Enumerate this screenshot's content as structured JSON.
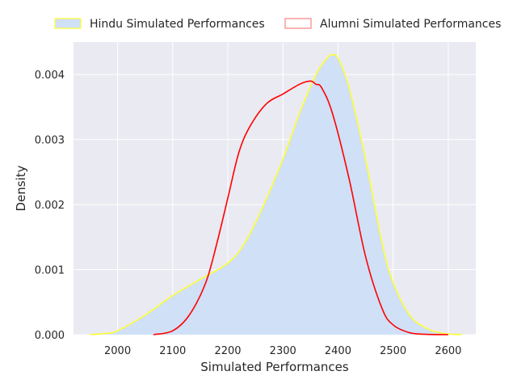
{
  "chart_data": {
    "type": "area",
    "xlabel": "Simulated Performances",
    "ylabel": "Density",
    "xlim": [
      1920,
      2650
    ],
    "ylim": [
      0,
      0.0045
    ],
    "xticks": [
      2000,
      2100,
      2200,
      2300,
      2400,
      2500,
      2600
    ],
    "yticks": [
      0.0,
      0.001,
      0.002,
      0.003,
      0.004
    ],
    "ytick_labels": [
      "0.000",
      "0.001",
      "0.002",
      "0.003",
      "0.004"
    ],
    "grid": true,
    "legend_position": "top",
    "series": [
      {
        "name": "Hindu Simulated Performances",
        "style": "filled",
        "line_color": "#ffff33",
        "fill_color": "#cfe0f7",
        "x": [
          1950,
          1980,
          2000,
          2050,
          2100,
          2150,
          2200,
          2230,
          2260,
          2300,
          2330,
          2360,
          2380,
          2390,
          2400,
          2420,
          2450,
          2480,
          2500,
          2530,
          2560,
          2590,
          2625
        ],
        "y": [
          0.0,
          2e-05,
          6e-05,
          0.0003,
          0.0006,
          0.00085,
          0.0011,
          0.0014,
          0.0019,
          0.0027,
          0.0034,
          0.004,
          0.00425,
          0.0043,
          0.00425,
          0.0038,
          0.0027,
          0.0014,
          0.0008,
          0.0003,
          0.0001,
          2e-05,
          0.0
        ]
      },
      {
        "name": "Alumni Simulated Performances",
        "style": "line",
        "line_color": "#ff0000",
        "x": [
          2065,
          2100,
          2130,
          2160,
          2180,
          2200,
          2220,
          2240,
          2270,
          2300,
          2330,
          2350,
          2360,
          2370,
          2390,
          2420,
          2450,
          2480,
          2500,
          2530,
          2560,
          2600
        ],
        "y": [
          0.0,
          6e-05,
          0.0003,
          0.0008,
          0.0014,
          0.0021,
          0.0028,
          0.0032,
          0.00355,
          0.0037,
          0.00385,
          0.0039,
          0.00385,
          0.0038,
          0.0034,
          0.0024,
          0.0012,
          0.0004,
          0.00015,
          3e-05,
          5e-06,
          0.0
        ]
      }
    ]
  },
  "colors": {
    "plot_background": "#eaeaf2",
    "grid": "#ffffff",
    "legend_alumni_edge": "#ff8080"
  }
}
